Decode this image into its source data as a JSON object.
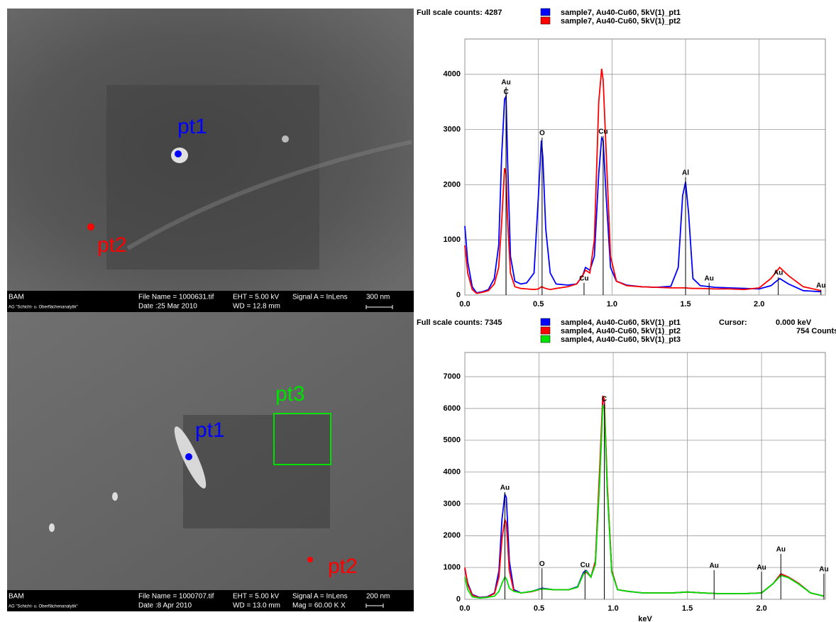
{
  "chart_data": [
    {
      "type": "line",
      "header": "Full scale counts: 4287",
      "xlim": [
        0,
        2.45
      ],
      "ylim": [
        0,
        4640
      ],
      "xticks": [
        {
          "value": 0,
          "label": "0.0"
        },
        0.5,
        {
          "value": 1,
          "label": "1.0"
        },
        1.5,
        {
          "value": 2,
          "label": "2.0"
        }
      ],
      "yticks": [
        0,
        1000,
        2000,
        3000,
        4000
      ],
      "grid": true,
      "x": [
        0,
        0.02,
        0.05,
        0.08,
        0.12,
        0.16,
        0.2,
        0.23,
        0.25,
        0.27,
        0.28,
        0.29,
        0.31,
        0.34,
        0.38,
        0.42,
        0.47,
        0.5,
        0.52,
        0.53,
        0.55,
        0.58,
        0.62,
        0.7,
        0.76,
        0.8,
        0.82,
        0.85,
        0.88,
        0.91,
        0.93,
        0.94,
        0.96,
        0.99,
        1.03,
        1.1,
        1.2,
        1.3,
        1.4,
        1.45,
        1.48,
        1.5,
        1.52,
        1.55,
        1.6,
        1.7,
        1.8,
        1.9,
        2.0,
        2.08,
        2.14,
        2.2,
        2.3,
        2.42
      ],
      "series": [
        {
          "name": "sample7, Au40-Cu60, 5kV(1)_pt1",
          "color": "#0000ff",
          "values": [
            1250,
            600,
            150,
            40,
            60,
            100,
            300,
            900,
            2500,
            3550,
            3600,
            2500,
            700,
            250,
            200,
            220,
            400,
            1800,
            2800,
            2500,
            1200,
            400,
            200,
            180,
            200,
            350,
            500,
            450,
            700,
            2200,
            2850,
            2800,
            1800,
            500,
            250,
            180,
            150,
            140,
            160,
            500,
            1800,
            2050,
            1500,
            300,
            170,
            140,
            130,
            120,
            110,
            170,
            300,
            200,
            80,
            60
          ]
        },
        {
          "name": "sample7, Au40-Cu60, 5kV(1)_pt2",
          "color": "#ff0000",
          "values": [
            900,
            400,
            100,
            30,
            50,
            80,
            200,
            500,
            1300,
            2300,
            2200,
            1400,
            400,
            150,
            120,
            110,
            100,
            110,
            150,
            140,
            120,
            100,
            120,
            150,
            200,
            350,
            450,
            400,
            1000,
            3500,
            4100,
            3900,
            2600,
            700,
            250,
            170,
            150,
            140,
            130,
            130,
            130,
            130,
            125,
            120,
            120,
            110,
            110,
            100,
            130,
            300,
            500,
            350,
            150,
            80
          ]
        }
      ],
      "annotations": [
        {
          "label": "Au",
          "x": 0.28,
          "counts": 3850
        },
        {
          "label": "C",
          "x": 0.28,
          "counts": 3680
        },
        {
          "label": "O",
          "x": 0.525,
          "counts": 2930
        },
        {
          "label": "Cu",
          "x": 0.81,
          "counts": 300
        },
        {
          "label": "Cu",
          "x": 0.94,
          "counts": 2960
        },
        {
          "label": "Al",
          "x": 1.5,
          "counts": 2210
        },
        {
          "label": "Au",
          "x": 1.66,
          "counts": 300
        },
        {
          "label": "Au",
          "x": 2.13,
          "counts": 400
        },
        {
          "label": "Au",
          "x": 2.42,
          "counts": 170
        }
      ]
    },
    {
      "type": "line",
      "header": "Full scale counts: 7345",
      "cursor_label": "Cursor:",
      "cursor_value": "0.000 keV",
      "cursor_counts": "754 Counts",
      "x_label": "keV",
      "xlim": [
        0,
        2.43
      ],
      "ylim": [
        0,
        7760
      ],
      "xticks": [
        {
          "value": 0,
          "label": "0.0"
        },
        0.5,
        {
          "value": 1,
          "label": "1.0"
        },
        1.5,
        {
          "value": 2,
          "label": "2.0"
        }
      ],
      "yticks": [
        0,
        1000,
        2000,
        3000,
        4000,
        5000,
        6000,
        7000
      ],
      "grid": true,
      "x": [
        0,
        0.02,
        0.05,
        0.1,
        0.15,
        0.2,
        0.23,
        0.25,
        0.27,
        0.28,
        0.3,
        0.33,
        0.38,
        0.45,
        0.52,
        0.6,
        0.7,
        0.76,
        0.8,
        0.82,
        0.85,
        0.88,
        0.91,
        0.93,
        0.94,
        0.96,
        0.99,
        1.03,
        1.1,
        1.2,
        1.3,
        1.4,
        1.5,
        1.6,
        1.7,
        1.8,
        1.9,
        2.0,
        2.08,
        2.13,
        2.18,
        2.25,
        2.33,
        2.42
      ],
      "series": [
        {
          "name": "sample4, Au40-Cu60, 5kV(1)_pt1",
          "color": "#0000ff",
          "values": [
            950,
            500,
            150,
            60,
            80,
            200,
            900,
            2500,
            3300,
            3200,
            1200,
            300,
            200,
            250,
            350,
            300,
            300,
            400,
            850,
            900,
            700,
            1200,
            4000,
            6300,
            6200,
            3500,
            900,
            300,
            250,
            200,
            200,
            200,
            230,
            200,
            180,
            180,
            180,
            200,
            500,
            800,
            700,
            500,
            200,
            100
          ]
        },
        {
          "name": "sample4, Au40-Cu60, 5kV(1)_pt2",
          "color": "#ff0000",
          "values": [
            1000,
            450,
            130,
            50,
            70,
            180,
            700,
            1900,
            2500,
            2400,
            900,
            260,
            200,
            240,
            330,
            300,
            300,
            380,
            800,
            850,
            700,
            1200,
            4200,
            6400,
            6300,
            3600,
            900,
            300,
            250,
            200,
            200,
            200,
            230,
            200,
            180,
            180,
            180,
            200,
            500,
            800,
            700,
            500,
            200,
            100
          ]
        },
        {
          "name": "sample4, Au40-Cu60, 5kV(1)_pt3",
          "color": "#00e000",
          "values": [
            700,
            300,
            80,
            40,
            60,
            100,
            250,
            500,
            700,
            650,
            350,
            250,
            200,
            250,
            330,
            300,
            300,
            380,
            800,
            880,
            700,
            1100,
            3800,
            6100,
            6000,
            3400,
            850,
            300,
            250,
            200,
            200,
            200,
            230,
            200,
            180,
            180,
            180,
            200,
            500,
            750,
            680,
            480,
            200,
            100
          ]
        }
      ],
      "annotations": [
        {
          "label": "Au",
          "x": 0.27,
          "counts": 3500
        },
        {
          "label": "O",
          "x": 0.52,
          "counts": 1110
        },
        {
          "label": "Cu",
          "x": 0.81,
          "counts": 1070
        },
        {
          "label": "C",
          "x": 0.94,
          "counts": 6290
        },
        {
          "label": "Au",
          "x": 1.68,
          "counts": 1050
        },
        {
          "label": "Au",
          "x": 2.0,
          "counts": 1000
        },
        {
          "label": "Au",
          "x": 2.13,
          "counts": 1560
        },
        {
          "label": "Au",
          "x": 2.42,
          "counts": 940
        }
      ]
    }
  ],
  "sem_images": [
    {
      "points": [
        "pt1",
        "pt2"
      ],
      "info": {
        "org": "BAM",
        "group": "AG \"Schicht- u. Oberflächenanalytik\"",
        "file": "File Name = 1000631.tif",
        "date": "Date :25 Mar 2010",
        "eht": "EHT =  5.00 kV",
        "wd": "WD = 12.8 mm",
        "signal": "Signal A = InLens",
        "scale": "300 nm"
      }
    },
    {
      "points": [
        "pt1",
        "pt2",
        "pt3"
      ],
      "info": {
        "org": "BAM",
        "group": "AG \"Schicht- u. Oberflächenanalytik\"",
        "file": "File Name = 1000707.tif",
        "date": "Date :8 Apr 2010",
        "eht": "EHT =  5.00 kV",
        "wd": "WD = 13.0 mm",
        "signal": "Signal A = InLens",
        "mag": "Mag = 60.00 K X",
        "scale": "200 nm"
      }
    }
  ]
}
